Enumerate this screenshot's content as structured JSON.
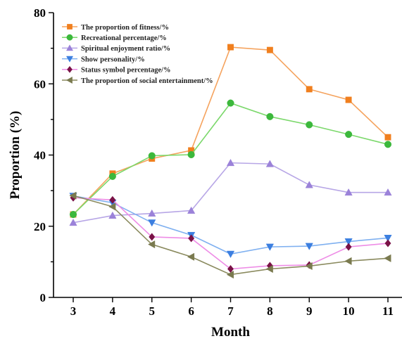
{
  "chart_data": {
    "type": "line",
    "xlabel": "Month",
    "ylabel": "Proportion (%)",
    "xlim": [
      3,
      11
    ],
    "ylim": [
      0,
      80
    ],
    "x": [
      3,
      4,
      5,
      6,
      7,
      8,
      9,
      10,
      11
    ],
    "xticks": [
      "3",
      "4",
      "5",
      "6",
      "7",
      "8",
      "9",
      "10",
      "11"
    ],
    "yticks": [
      "0",
      "20",
      "40",
      "60",
      "80"
    ],
    "grid": false,
    "legend_position": "top-left",
    "series": [
      {
        "name": "The proportion of fitness/%",
        "line_color": "#f5a35e",
        "marker_color": "#f07f1e",
        "marker": "square",
        "values": [
          23.3,
          34.8,
          39.0,
          41.3,
          70.3,
          69.5,
          58.5,
          55.5,
          45.0
        ]
      },
      {
        "name": "Recreational percentage/%",
        "line_color": "#7bd86b",
        "marker_color": "#3cb83c",
        "marker": "circle",
        "values": [
          23.3,
          34.0,
          39.8,
          40.1,
          54.6,
          50.8,
          48.5,
          45.8,
          43.0
        ]
      },
      {
        "name": "Spiritual enjoyment ratio/%",
        "line_color": "#b7a6e6",
        "marker_color": "#9b82d9",
        "marker": "triangle-up",
        "values": [
          21.0,
          23.0,
          23.6,
          24.4,
          37.8,
          37.5,
          31.6,
          29.5,
          29.5
        ]
      },
      {
        "name": "Show personality/%",
        "line_color": "#7fb0f0",
        "marker_color": "#3c7fe0",
        "marker": "triangle-down",
        "values": [
          28.5,
          26.6,
          21.0,
          17.5,
          12.2,
          14.2,
          14.4,
          15.7,
          16.7
        ]
      },
      {
        "name": "Status symbol percentage/%",
        "line_color": "#ee8ce6",
        "marker_color": "#7a1247",
        "marker": "diamond",
        "values": [
          28.0,
          27.4,
          17.0,
          16.6,
          8.0,
          8.9,
          9.1,
          14.2,
          15.2
        ]
      },
      {
        "name": "The proportion of social entertainment/%",
        "line_color": "#8a8a5e",
        "marker_color": "#7a7a4f",
        "marker": "triangle-left",
        "values": [
          28.6,
          25.5,
          14.9,
          11.4,
          6.4,
          8.0,
          8.8,
          10.2,
          11.0
        ]
      }
    ]
  }
}
